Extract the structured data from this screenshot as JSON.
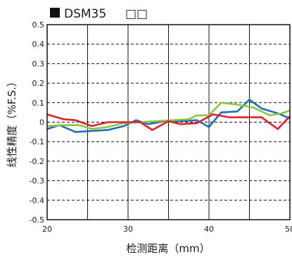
{
  "chart_data": {
    "type": "line",
    "title": "DSM35",
    "title_suffix": "□□",
    "xlabel": "检测距离（mm）",
    "ylabel": "线性精度（%F.S.）",
    "xlim": [
      20,
      50
    ],
    "ylim": [
      -0.5,
      0.5
    ],
    "x_ticks": [
      20,
      30,
      40,
      50
    ],
    "y_ticks": [
      0.5,
      0.4,
      0.3,
      0.2,
      0.1,
      0,
      -0.1,
      -0.2,
      -0.3,
      -0.4,
      -0.5
    ],
    "x_tick_labels": [
      "20",
      "30",
      "40",
      "50"
    ],
    "y_tick_labels": [
      "0.5",
      "0.4",
      "0.3",
      "0.2",
      "0.1",
      "0",
      "-0.1",
      "-0.2",
      "-0.3",
      "-0.4",
      "-0.5"
    ],
    "vertical_grid_x": [
      25,
      30,
      35,
      40,
      45
    ],
    "grid": true,
    "series": [
      {
        "color": "#1f6fb5",
        "x": [
          20,
          21.5,
          23.5,
          25.5,
          27.5,
          29.5,
          31,
          32.5,
          34.5,
          36.5,
          38.5,
          40,
          41.5,
          43.5,
          45,
          46.5,
          48.5,
          50
        ],
        "y": [
          -0.035,
          -0.015,
          -0.05,
          -0.045,
          -0.04,
          -0.02,
          0.01,
          -0.01,
          0.005,
          0.005,
          0.01,
          -0.025,
          0.05,
          0.055,
          0.115,
          0.07,
          0.045,
          0.02
        ]
      },
      {
        "color": "#8cc63f",
        "x": [
          20,
          22,
          24,
          25.5,
          27.5,
          29.5,
          31.5,
          33.5,
          35.5,
          37.5,
          38.5,
          40,
          41.5,
          43.5,
          45.5,
          47.5,
          49,
          50
        ],
        "y": [
          -0.02,
          -0.015,
          -0.015,
          -0.035,
          -0.025,
          -0.005,
          0.0,
          0.005,
          0.01,
          0.015,
          0.035,
          0.035,
          0.1,
          0.09,
          0.075,
          0.035,
          0.045,
          0.06
        ]
      },
      {
        "color": "#e0202e",
        "x": [
          20,
          22,
          23.5,
          25.5,
          27.5,
          29.5,
          31.5,
          33,
          35,
          36.5,
          38.5,
          40.5,
          42.5,
          44.5,
          46.5,
          48.5,
          50
        ],
        "y": [
          0.04,
          0.015,
          0.01,
          -0.02,
          0.0,
          0.0,
          0.0,
          -0.04,
          0.005,
          -0.01,
          -0.005,
          0.04,
          0.025,
          0.025,
          0.025,
          -0.035,
          0.03
        ]
      }
    ]
  }
}
